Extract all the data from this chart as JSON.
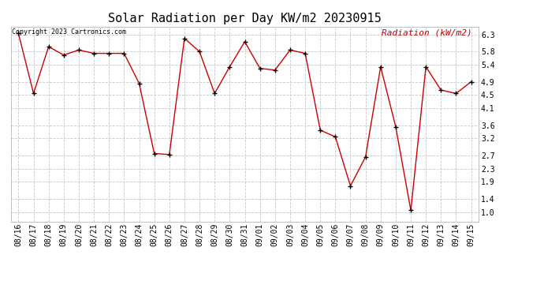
{
  "title": "Solar Radiation per Day KW/m2 20230915",
  "copyright": "Copyright 2023 Cartronics.com",
  "legend_label": "Radiation (kW/m2)",
  "dates": [
    "08/16",
    "08/17",
    "08/18",
    "08/19",
    "08/20",
    "08/21",
    "08/22",
    "08/23",
    "08/24",
    "08/25",
    "08/26",
    "08/27",
    "08/28",
    "08/29",
    "08/30",
    "08/31",
    "09/01",
    "09/02",
    "09/03",
    "09/04",
    "09/05",
    "09/06",
    "09/07",
    "09/08",
    "09/09",
    "09/10",
    "09/11",
    "09/12",
    "09/13",
    "09/14",
    "09/15"
  ],
  "values": [
    6.35,
    4.55,
    5.95,
    5.7,
    5.85,
    5.75,
    5.75,
    5.75,
    4.85,
    2.75,
    2.72,
    6.2,
    5.8,
    4.55,
    5.35,
    6.1,
    5.3,
    5.25,
    5.85,
    5.75,
    3.45,
    3.25,
    1.78,
    2.65,
    5.35,
    3.55,
    1.05,
    5.35,
    4.65,
    4.55,
    4.9
  ],
  "ylim": [
    0.7,
    6.55
  ],
  "yticks": [
    1.0,
    1.4,
    1.9,
    2.3,
    2.7,
    3.2,
    3.6,
    4.1,
    4.5,
    4.9,
    5.4,
    5.8,
    6.3
  ],
  "line_color": "#cc0000",
  "marker_color": "#000000",
  "bg_color": "#ffffff",
  "grid_color": "#c8c8c8",
  "title_color": "#000000",
  "copyright_color": "#000000",
  "legend_color": "#cc0000",
  "title_fontsize": 11,
  "tick_fontsize": 7,
  "copyright_fontsize": 6,
  "legend_fontsize": 8
}
